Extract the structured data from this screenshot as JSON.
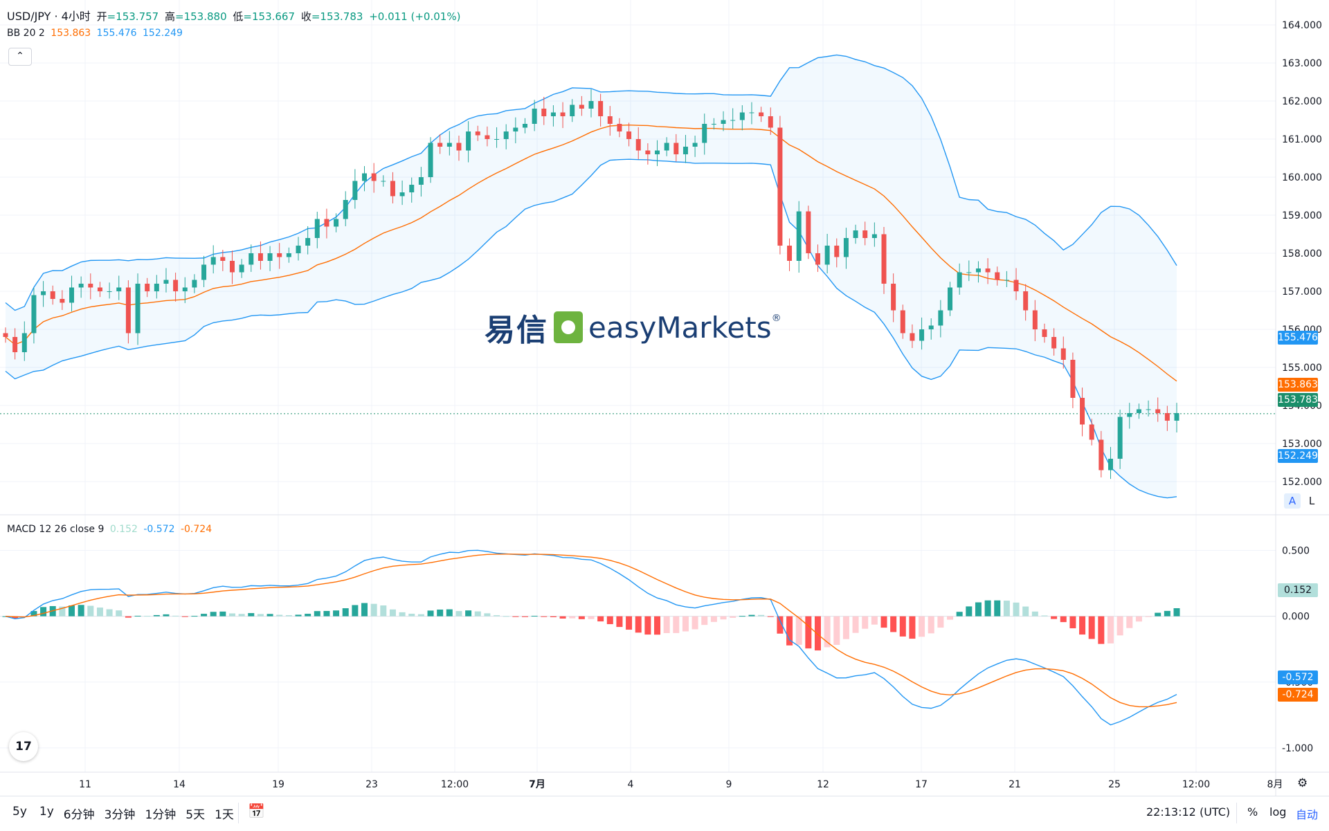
{
  "header": {
    "symbol": "USD/JPY · 4小时",
    "open_label": "开",
    "open": "=153.757",
    "high_label": "高",
    "high": "=153.880",
    "low_label": "低",
    "low": "=153.667",
    "close_label": "收",
    "close": "=153.783",
    "change": "+0.011 (+0.01%)"
  },
  "bb_legend": {
    "name": "BB 20 2",
    "basis": "153.863",
    "upper": "155.476",
    "lower": "152.249"
  },
  "macd_legend": {
    "name": "MACD 12 26 close 9",
    "hist": "0.152",
    "macd": "-0.572",
    "signal": "-0.724"
  },
  "watermark": {
    "cn": "易信",
    "en": "easyMarkets",
    "mark": "®"
  },
  "price_axis": [
    "164.000",
    "163.000",
    "162.000",
    "161.000",
    "160.000",
    "159.000",
    "158.000",
    "157.000",
    "156.000",
    "155.000",
    "154.000",
    "153.000",
    "152.000"
  ],
  "macd_axis": [
    "0.500",
    "0.000",
    "-0.500",
    "-1.000"
  ],
  "price_labels": {
    "upper": "155.476",
    "basis": "153.863",
    "last": "153.783",
    "lower": "152.249"
  },
  "macd_labels": {
    "hist": "0.152",
    "macd": "-0.572",
    "signal": "-0.724"
  },
  "time_axis": [
    "11",
    "14",
    "19",
    "23",
    "12:00",
    "7月",
    "4",
    "9",
    "12",
    "17",
    "21",
    "25",
    "12:00",
    "8月"
  ],
  "scale_buttons": {
    "auto_a": "A",
    "log_l": "L"
  },
  "bottom_bar": {
    "ranges": [
      "5y",
      "1y",
      "6分钟",
      "3分钟",
      "1分钟",
      "5天",
      "1天"
    ],
    "clock": "22:13:12 (UTC)",
    "percent": "%",
    "log": "log",
    "auto": "自动"
  },
  "colors": {
    "up": "#26a69a",
    "down": "#ef5350",
    "basis": "#ff6d00",
    "band": "#2196f3",
    "last": "#1b8e6a"
  },
  "chart_data": [
    {
      "type": "candlestick",
      "title": "USD/JPY · 4小时",
      "ylim": [
        151.2,
        164.4
      ],
      "close": [
        155.8,
        155.4,
        155.9,
        156.9,
        157.0,
        156.8,
        156.7,
        157.1,
        157.2,
        157.1,
        157.0,
        157.0,
        157.1,
        155.9,
        157.2,
        157.0,
        157.2,
        157.3,
        157.0,
        157.1,
        157.3,
        157.7,
        157.9,
        157.8,
        157.5,
        157.7,
        158.0,
        157.8,
        158.0,
        157.9,
        158.0,
        158.2,
        158.4,
        158.9,
        158.7,
        158.9,
        159.4,
        159.9,
        160.1,
        159.9,
        159.9,
        159.5,
        159.6,
        159.8,
        160.0,
        160.9,
        160.8,
        160.9,
        160.7,
        161.2,
        161.1,
        161.0,
        161.0,
        161.2,
        161.3,
        161.4,
        161.8,
        161.6,
        161.7,
        161.6,
        161.9,
        161.8,
        162.0,
        161.6,
        161.4,
        161.2,
        161.0,
        160.7,
        160.6,
        160.7,
        160.9,
        160.6,
        160.8,
        160.9,
        161.4,
        161.4,
        161.5,
        161.5,
        161.7,
        161.7,
        161.6,
        161.3,
        158.2,
        157.8,
        159.1,
        158.0,
        157.7,
        158.2,
        157.9,
        158.4,
        158.6,
        158.4,
        158.5,
        157.2,
        156.5,
        155.9,
        155.7,
        156.0,
        156.1,
        156.5,
        157.1,
        157.5,
        157.5,
        157.6,
        157.5,
        157.3,
        157.3,
        157.0,
        156.5,
        156.0,
        155.8,
        155.5,
        155.2,
        154.2,
        153.5,
        153.1,
        152.3,
        152.6,
        153.7,
        153.8,
        153.9,
        153.9,
        153.8,
        153.6,
        153.8
      ],
      "basis_end": 153.863,
      "upper_end": 155.476,
      "lower_end": 152.249
    },
    {
      "type": "bar",
      "title": "MACD 12 26 close 9",
      "ylim": [
        -1.3,
        0.75
      ],
      "hist_last": 0.152,
      "macd_last": -0.572,
      "signal_last": -0.724
    }
  ]
}
